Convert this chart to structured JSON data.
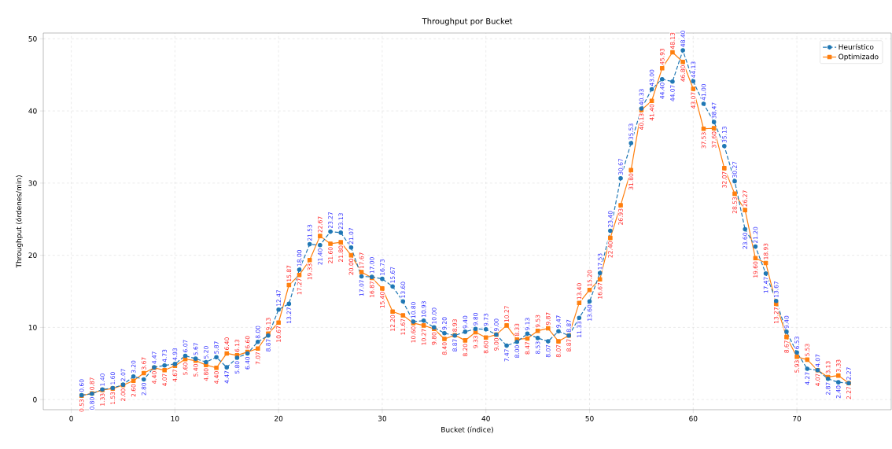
{
  "chart_data": {
    "type": "line",
    "title": "Throughput por Bucket",
    "xlabel": "Bucket (índice)",
    "ylabel": "Throughput (órdenes/min)",
    "x": [
      1,
      2,
      3,
      4,
      5,
      6,
      7,
      8,
      9,
      10,
      11,
      12,
      13,
      14,
      15,
      16,
      17,
      18,
      19,
      20,
      21,
      22,
      23,
      24,
      25,
      26,
      27,
      28,
      29,
      30,
      31,
      32,
      33,
      34,
      35,
      36,
      37,
      38,
      39,
      40,
      41,
      42,
      43,
      44,
      45,
      46,
      47,
      48,
      49,
      50,
      51,
      52,
      53,
      54,
      55,
      56,
      57,
      58,
      59,
      60,
      61,
      62,
      63,
      64,
      65,
      66,
      67,
      68,
      69,
      70,
      71,
      72,
      73,
      74,
      75
    ],
    "series": [
      {
        "name": "Heurístico",
        "color": "#1f77b4",
        "marker": "circle",
        "line_style": "dashed",
        "values": [
          0.6,
          0.8,
          1.4,
          1.6,
          2.07,
          3.2,
          2.8,
          4.47,
          4.73,
          4.93,
          6.07,
          5.67,
          5.2,
          5.87,
          4.47,
          5.8,
          6.4,
          8.0,
          8.87,
          12.47,
          13.27,
          18.0,
          21.53,
          21.4,
          23.27,
          23.13,
          21.07,
          17.07,
          17.0,
          16.73,
          15.67,
          13.6,
          10.8,
          10.93,
          10.0,
          9.2,
          8.87,
          9.4,
          9.8,
          9.73,
          9.0,
          7.47,
          8.0,
          9.13,
          8.53,
          8.07,
          9.47,
          8.87,
          11.33,
          13.6,
          17.53,
          23.4,
          30.67,
          35.53,
          40.33,
          43.0,
          44.4,
          44.07,
          48.4,
          44.13,
          41.0,
          38.47,
          35.13,
          30.27,
          23.6,
          21.2,
          17.47,
          13.67,
          9.4,
          6.53,
          4.27,
          4.07,
          2.87,
          2.4,
          2.27
        ],
        "value_labels": [
          "0.60",
          "0.80",
          "1.40",
          "1.60",
          "2.07",
          "3.20",
          "2.80",
          "4.47",
          "4.73",
          "4.93",
          "6.07",
          "5.67",
          "5.20",
          "5.87",
          "4.47",
          "5.80",
          "6.40",
          "8.00",
          "8.87",
          "12.47",
          "13.27",
          "18.00",
          "21.53",
          "21.40",
          "23.27",
          "23.13",
          "21.07",
          "17.07",
          "17.00",
          "16.73",
          "15.67",
          "13.60",
          "10.80",
          "10.93",
          "10.00",
          "9.20",
          "8.87",
          "9.40",
          "9.80",
          "9.73",
          "9.00",
          "7.47",
          "8.00",
          "9.13",
          "8.53",
          "8.07",
          "9.47",
          "8.87",
          "11.33",
          "13.60",
          "17.53",
          "23.40",
          "30.67",
          "35.53",
          "40.33",
          "43.00",
          "44.40",
          "44.07",
          "48.40",
          "44.13",
          "41.00",
          "38.47",
          "35.13",
          "30.27",
          "23.60",
          "21.20",
          "17.47",
          "13.67",
          "9.40",
          "6.53",
          "4.27",
          "4.07",
          "2.87",
          "2.40",
          "2.27"
        ]
      },
      {
        "name": "Optimizado",
        "color": "#ff7f0e",
        "marker": "square",
        "line_style": "solid",
        "values": [
          0.53,
          0.87,
          1.33,
          1.53,
          2.0,
          2.6,
          3.67,
          4.4,
          4.07,
          4.67,
          5.6,
          5.4,
          4.8,
          4.4,
          6.4,
          6.13,
          6.6,
          7.07,
          9.13,
          10.67,
          15.87,
          17.27,
          19.33,
          22.67,
          21.6,
          21.8,
          20.0,
          17.67,
          16.87,
          15.4,
          12.2,
          11.67,
          10.6,
          10.27,
          9.8,
          8.4,
          8.93,
          8.2,
          9.33,
          8.6,
          9.0,
          10.27,
          8.33,
          8.47,
          9.53,
          9.87,
          8.07,
          8.87,
          13.4,
          15.2,
          16.67,
          22.4,
          26.93,
          31.8,
          40.13,
          41.4,
          45.93,
          48.13,
          46.8,
          43.07,
          37.53,
          37.6,
          32.07,
          28.53,
          26.27,
          19.6,
          18.93,
          13.27,
          8.67,
          5.93,
          5.53,
          4.07,
          3.13,
          3.33,
          2.27
        ],
        "value_labels": [
          "0.53",
          "0.87",
          "1.33",
          "1.53",
          "2.00",
          "2.60",
          "3.67",
          "4.40",
          "4.07",
          "4.67",
          "5.60",
          "5.40",
          "4.80",
          "4.40",
          "6.40",
          "6.13",
          "6.60",
          "7.07",
          "9.13",
          "10.67",
          "15.87",
          "17.27",
          "19.33",
          "22.67",
          "21.60",
          "21.80",
          "20.00",
          "17.67",
          "16.87",
          "15.40",
          "12.20",
          "11.67",
          "10.60",
          "10.27",
          "9.80",
          "8.40",
          "8.93",
          "8.20",
          "9.33",
          "8.60",
          "9.00",
          "10.27",
          "8.33",
          "8.47",
          "9.53",
          "9.87",
          "8.07",
          "8.87",
          "13.40",
          "15.20",
          "16.67",
          "22.40",
          "26.93",
          "31.80",
          "40.13",
          "41.40",
          "45.93",
          "48.13",
          "46.80",
          "43.07",
          "37.53",
          "37.60",
          "32.07",
          "28.53",
          "26.27",
          "19.60",
          "18.93",
          "13.27",
          "8.67",
          "5.93",
          "5.53",
          "4.07",
          "3.13",
          "3.33",
          "2.27"
        ]
      }
    ],
    "xlim": [
      -2.7,
      79.1
    ],
    "ylim": [
      -1.4,
      50.8
    ],
    "xticks": [
      0,
      10,
      20,
      30,
      40,
      50,
      60,
      70
    ],
    "yticks": [
      0,
      10,
      20,
      30,
      40,
      50
    ],
    "grid": true,
    "legend": "top right"
  }
}
